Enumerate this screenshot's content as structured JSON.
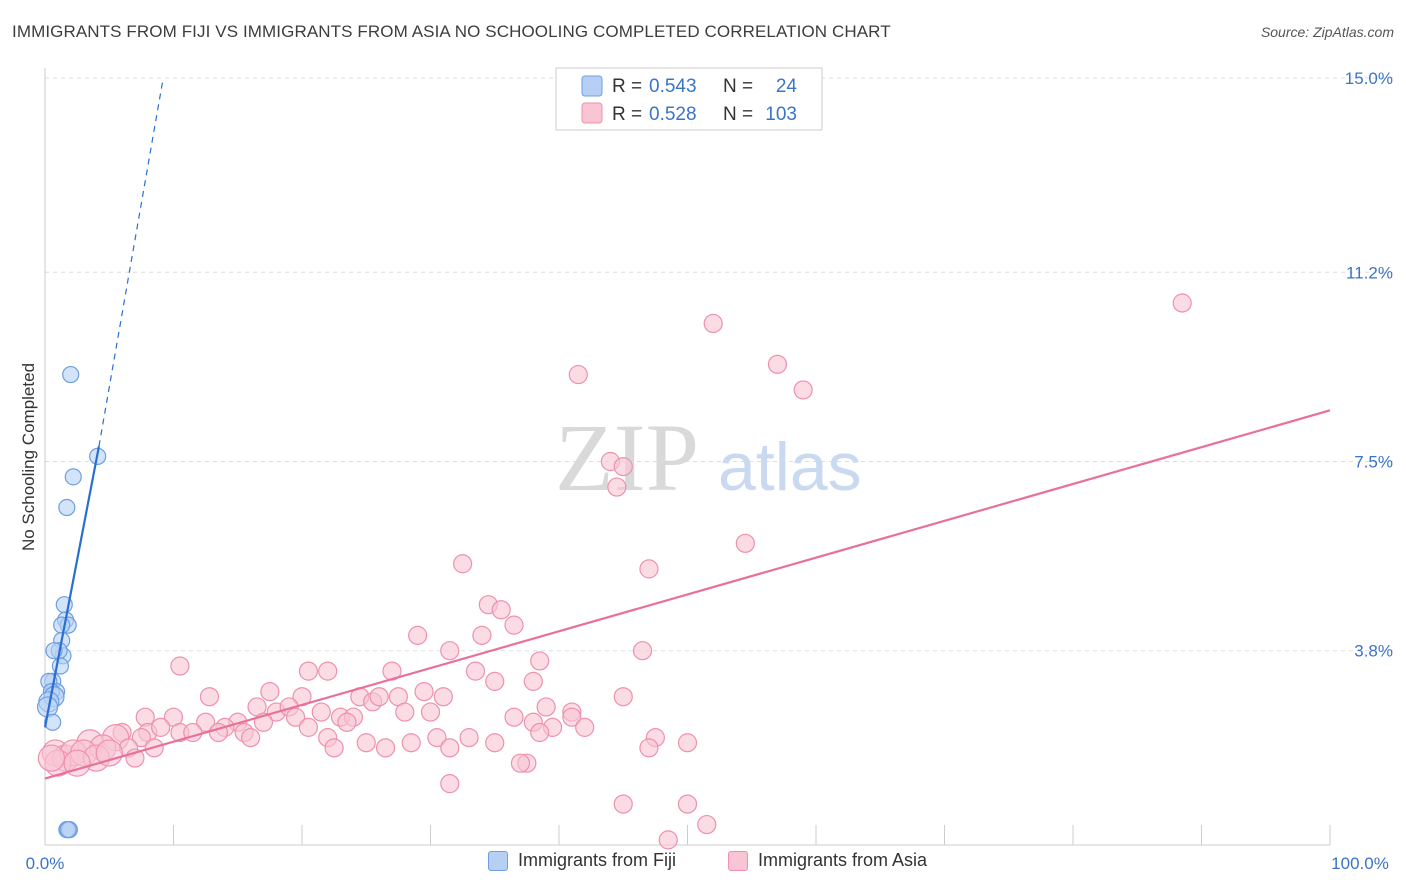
{
  "title": "IMMIGRANTS FROM FIJI VS IMMIGRANTS FROM ASIA NO SCHOOLING COMPLETED CORRELATION CHART",
  "source": "Source: ZipAtlas.com",
  "watermark": {
    "zip": "ZIP",
    "atlas": "atlas"
  },
  "colors": {
    "fiji_fill": "#b6d0f5",
    "fiji_stroke": "#6e9fe0",
    "fiji_line": "#2a6fd0",
    "asia_fill": "#f9c4d4",
    "asia_stroke": "#ee90ae",
    "asia_line": "#e8709a",
    "value_blue": "#3a74c9",
    "grid": "#dddddd"
  },
  "legend": {
    "r_label": "R =",
    "n_label": "N =",
    "series": [
      {
        "name": "Immigrants from Fiji",
        "r": "0.543",
        "n": "24"
      },
      {
        "name": "Immigrants from Asia",
        "r": "0.528",
        "n": "103"
      }
    ]
  },
  "chart_data": {
    "type": "scatter",
    "title": "IMMIGRANTS FROM FIJI VS IMMIGRANTS FROM ASIA NO SCHOOLING COMPLETED CORRELATION CHART",
    "xlabel": "",
    "ylabel": "No Schooling Completed",
    "xlim": [
      0,
      100
    ],
    "ylim": [
      0,
      15.0
    ],
    "x_tick_labels": [
      "0.0%",
      "100.0%"
    ],
    "y_ticks": [
      3.8,
      7.5,
      11.2,
      15.0
    ],
    "y_tick_labels": [
      "3.8%",
      "7.5%",
      "11.2%",
      "15.0%"
    ],
    "series": [
      {
        "name": "Immigrants from Fiji",
        "points": [
          [
            2.0,
            9.2
          ],
          [
            4.1,
            7.6
          ],
          [
            2.2,
            7.2
          ],
          [
            1.7,
            6.6
          ],
          [
            1.5,
            4.7
          ],
          [
            1.6,
            4.4
          ],
          [
            1.8,
            4.3
          ],
          [
            1.3,
            4.3
          ],
          [
            1.3,
            4.0
          ],
          [
            1.4,
            3.7
          ],
          [
            1.1,
            3.8
          ],
          [
            0.7,
            3.8
          ],
          [
            1.2,
            3.5
          ],
          [
            0.6,
            3.2
          ],
          [
            0.3,
            3.2
          ],
          [
            0.9,
            3.0
          ],
          [
            0.5,
            3.0
          ],
          [
            0.7,
            2.9
          ],
          [
            0.3,
            2.8
          ],
          [
            0.2,
            2.7
          ],
          [
            0.6,
            2.4
          ],
          [
            1.7,
            0.3
          ],
          [
            1.9,
            0.3
          ],
          [
            1.8,
            0.3
          ]
        ],
        "trend": {
          "x1": 0.0,
          "y1": 2.3,
          "x2": 4.2,
          "y2": 7.8,
          "dash_x2": 9.2,
          "dash_y2": 15.0
        }
      },
      {
        "name": "Immigrants from Asia",
        "points": [
          [
            88.5,
            10.6
          ],
          [
            52.0,
            10.2
          ],
          [
            57.0,
            9.4
          ],
          [
            41.5,
            9.2
          ],
          [
            59.0,
            8.9
          ],
          [
            44.0,
            7.5
          ],
          [
            45.0,
            7.4
          ],
          [
            44.5,
            7.0
          ],
          [
            54.5,
            5.9
          ],
          [
            32.5,
            5.5
          ],
          [
            47.0,
            5.4
          ],
          [
            34.5,
            4.7
          ],
          [
            35.5,
            4.6
          ],
          [
            36.5,
            4.3
          ],
          [
            29.0,
            4.1
          ],
          [
            34.0,
            4.1
          ],
          [
            31.5,
            3.8
          ],
          [
            46.5,
            3.8
          ],
          [
            10.5,
            3.5
          ],
          [
            38.5,
            3.6
          ],
          [
            20.5,
            3.4
          ],
          [
            22.0,
            3.4
          ],
          [
            27.0,
            3.4
          ],
          [
            33.5,
            3.4
          ],
          [
            35.0,
            3.2
          ],
          [
            38.0,
            3.2
          ],
          [
            17.5,
            3.0
          ],
          [
            20.0,
            2.9
          ],
          [
            29.5,
            3.0
          ],
          [
            24.5,
            2.9
          ],
          [
            12.8,
            2.9
          ],
          [
            25.5,
            2.8
          ],
          [
            26.0,
            2.9
          ],
          [
            27.5,
            2.9
          ],
          [
            31.0,
            2.9
          ],
          [
            45.0,
            2.9
          ],
          [
            16.5,
            2.7
          ],
          [
            18.0,
            2.6
          ],
          [
            19.0,
            2.7
          ],
          [
            21.5,
            2.6
          ],
          [
            23.0,
            2.5
          ],
          [
            24.0,
            2.5
          ],
          [
            28.0,
            2.6
          ],
          [
            30.0,
            2.6
          ],
          [
            39.0,
            2.7
          ],
          [
            41.0,
            2.6
          ],
          [
            7.8,
            2.5
          ],
          [
            10.0,
            2.5
          ],
          [
            12.5,
            2.4
          ],
          [
            15.0,
            2.4
          ],
          [
            19.5,
            2.5
          ],
          [
            23.5,
            2.4
          ],
          [
            36.5,
            2.5
          ],
          [
            38.0,
            2.4
          ],
          [
            41.0,
            2.5
          ],
          [
            6.0,
            2.2
          ],
          [
            8.0,
            2.2
          ],
          [
            9.0,
            2.3
          ],
          [
            10.5,
            2.2
          ],
          [
            11.5,
            2.2
          ],
          [
            14.0,
            2.3
          ],
          [
            15.5,
            2.2
          ],
          [
            17.0,
            2.4
          ],
          [
            20.5,
            2.3
          ],
          [
            39.5,
            2.3
          ],
          [
            42.0,
            2.3
          ],
          [
            5.5,
            2.1
          ],
          [
            7.5,
            2.1
          ],
          [
            13.5,
            2.2
          ],
          [
            16.0,
            2.1
          ],
          [
            22.0,
            2.1
          ],
          [
            28.5,
            2.0
          ],
          [
            30.5,
            2.1
          ],
          [
            33.0,
            2.1
          ],
          [
            35.0,
            2.0
          ],
          [
            38.5,
            2.2
          ],
          [
            47.5,
            2.1
          ],
          [
            50.0,
            2.0
          ],
          [
            3.5,
            2.0
          ],
          [
            4.5,
            1.9
          ],
          [
            6.5,
            1.9
          ],
          [
            8.5,
            1.9
          ],
          [
            22.5,
            1.9
          ],
          [
            25.0,
            2.0
          ],
          [
            26.5,
            1.9
          ],
          [
            31.5,
            1.9
          ],
          [
            47.0,
            1.9
          ],
          [
            0.8,
            1.8
          ],
          [
            1.6,
            1.7
          ],
          [
            2.2,
            1.8
          ],
          [
            3.0,
            1.8
          ],
          [
            4.0,
            1.7
          ],
          [
            5.0,
            1.8
          ],
          [
            7.0,
            1.7
          ],
          [
            37.5,
            1.6
          ],
          [
            37.0,
            1.6
          ],
          [
            1.0,
            1.6
          ],
          [
            2.5,
            1.6
          ],
          [
            0.5,
            1.7
          ],
          [
            31.5,
            1.2
          ],
          [
            45.0,
            0.8
          ],
          [
            50.0,
            0.8
          ],
          [
            51.5,
            0.4
          ],
          [
            48.5,
            0.1
          ]
        ],
        "trend": {
          "x1": 0.0,
          "y1": 1.3,
          "x2": 100.0,
          "y2": 8.5
        }
      }
    ],
    "legend_position": "top-center",
    "grid": true
  }
}
